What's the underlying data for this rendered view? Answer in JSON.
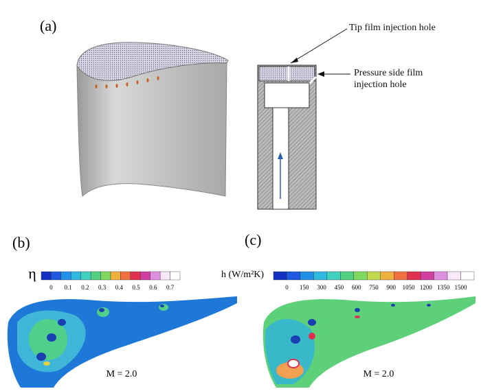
{
  "panels": [
    {
      "label": "(a)",
      "annotations": [
        "Tip film injection hole",
        "Pressure side film injection hole"
      ]
    },
    {
      "label": "(b)",
      "colorbar": {
        "title": "η",
        "ticks": [
          0,
          0.1,
          0.2,
          0.3,
          0.4,
          0.5,
          0.6,
          0.7
        ]
      },
      "caption": "M = 2.0"
    },
    {
      "label": "(c)",
      "colorbar": {
        "title": "h (W/m²K)",
        "ticks": [
          0,
          150,
          300,
          450,
          600,
          750,
          900,
          1050,
          1200,
          1350,
          1500
        ]
      },
      "caption": "M = 2.0"
    }
  ]
}
